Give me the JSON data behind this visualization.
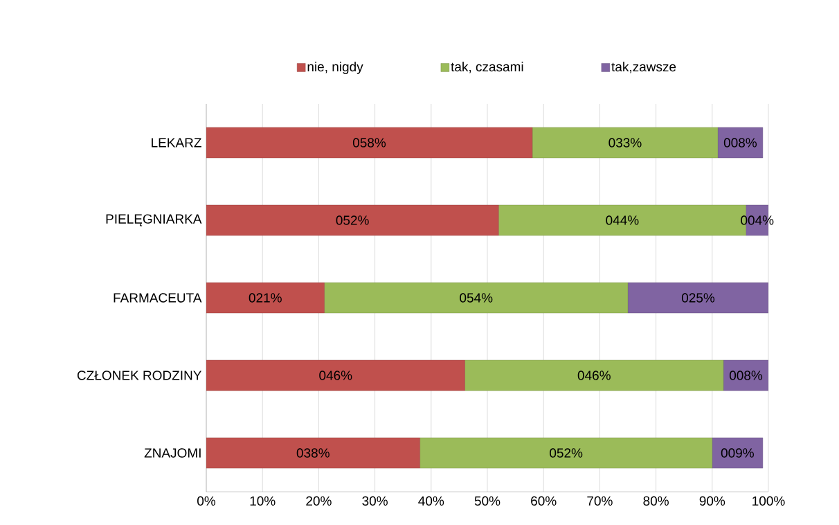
{
  "chart_data": {
    "type": "bar",
    "orientation": "horizontal",
    "stacked": true,
    "categories": [
      "LEKARZ",
      "PIELĘGNIARKA",
      "FARMACEUTA",
      "CZŁONEK RODZINY",
      "ZNAJOMI"
    ],
    "series": [
      {
        "name": "nie, nigdy",
        "color": "#c0504d",
        "values": [
          58,
          52,
          21,
          46,
          38
        ],
        "value_labels": [
          "058%",
          "052%",
          "021%",
          "046%",
          "038%"
        ]
      },
      {
        "name": "tak, czasami",
        "color": "#9bbb59",
        "values": [
          33,
          44,
          54,
          46,
          52
        ],
        "value_labels": [
          "033%",
          "044%",
          "054%",
          "046%",
          "052%"
        ]
      },
      {
        "name": "tak,zawsze",
        "color": "#8064a2",
        "values": [
          8,
          4,
          25,
          8,
          9
        ],
        "value_labels": [
          "008%",
          "004%",
          "025%",
          "008%",
          "009%"
        ]
      }
    ],
    "xlim": [
      0,
      100
    ],
    "xticks": [
      {
        "value": 0,
        "label": "0%"
      },
      {
        "value": 10,
        "label": "10%"
      },
      {
        "value": 20,
        "label": "20%"
      },
      {
        "value": 30,
        "label": "30%"
      },
      {
        "value": 40,
        "label": "40%"
      },
      {
        "value": 50,
        "label": "50%"
      },
      {
        "value": 60,
        "label": "60%"
      },
      {
        "value": 70,
        "label": "70%"
      },
      {
        "value": 80,
        "label": "80%"
      },
      {
        "value": 90,
        "label": "90%"
      },
      {
        "value": 100,
        "label": "100%"
      }
    ],
    "grid": "x",
    "legend": "top"
  }
}
